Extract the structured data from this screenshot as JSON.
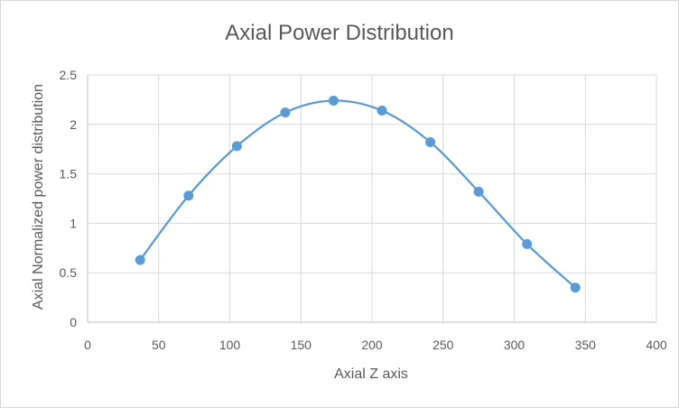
{
  "chart_data": {
    "type": "scatter",
    "title": "Axial Power Distribution",
    "xlabel": "Axial Z axis",
    "ylabel": "Axial Normalized power distribution",
    "xlim": [
      0,
      400
    ],
    "ylim": [
      0,
      2.5
    ],
    "xticks": [
      0,
      50,
      100,
      150,
      200,
      250,
      300,
      350,
      400
    ],
    "yticks": [
      0,
      0.5,
      1,
      1.5,
      2,
      2.5
    ],
    "grid": true,
    "legend": "none",
    "smooth_line": true,
    "series_color": "#5b9bd5",
    "series": [
      {
        "x": [
          37,
          71,
          105,
          139,
          173,
          207,
          241,
          275,
          309,
          343
        ],
        "y": [
          0.63,
          1.28,
          1.78,
          2.12,
          2.24,
          2.14,
          1.82,
          1.32,
          0.79,
          0.35
        ]
      }
    ]
  }
}
